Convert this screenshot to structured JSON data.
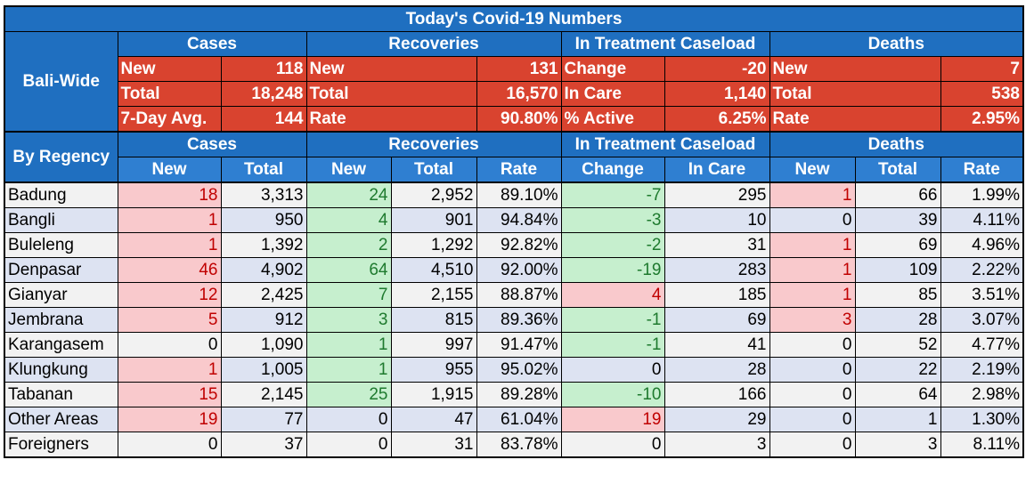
{
  "title": "Today's Covid-19 Numbers",
  "bali_wide": {
    "label": "Bali-Wide",
    "group_headers": [
      "Cases",
      "Recoveries",
      "In Treatment Caseload",
      "Deaths"
    ],
    "rows": [
      [
        "New",
        "118",
        "New",
        "131",
        "Change",
        "-20",
        "New",
        "7"
      ],
      [
        "Total",
        "18,248",
        "Total",
        "16,570",
        "In Care",
        "1,140",
        "Total",
        "538"
      ],
      [
        "7-Day Avg.",
        "144",
        "Rate",
        "90.80%",
        "% Active",
        "6.25%",
        "Rate",
        "2.95%"
      ]
    ]
  },
  "by_regency": {
    "label": "By Regency",
    "group_headers": [
      "Cases",
      "Recoveries",
      "In Treatment Caseload",
      "Deaths"
    ],
    "columns": [
      "New",
      "Total",
      "New",
      "Total",
      "Rate",
      "Change",
      "In Care",
      "New",
      "Total",
      "Rate"
    ],
    "rows": [
      {
        "name": "Badung",
        "v": [
          "18",
          "3,313",
          "24",
          "2,952",
          "89.10%",
          "-7",
          "295",
          "1",
          "66",
          "1.99%"
        ]
      },
      {
        "name": "Bangli",
        "v": [
          "1",
          "950",
          "4",
          "901",
          "94.84%",
          "-3",
          "10",
          "0",
          "39",
          "4.11%"
        ]
      },
      {
        "name": "Buleleng",
        "v": [
          "1",
          "1,392",
          "2",
          "1,292",
          "92.82%",
          "-2",
          "31",
          "1",
          "69",
          "4.96%"
        ]
      },
      {
        "name": "Denpasar",
        "v": [
          "46",
          "4,902",
          "64",
          "4,510",
          "92.00%",
          "-19",
          "283",
          "1",
          "109",
          "2.22%"
        ]
      },
      {
        "name": "Gianyar",
        "v": [
          "12",
          "2,425",
          "7",
          "2,155",
          "88.87%",
          "4",
          "185",
          "1",
          "85",
          "3.51%"
        ]
      },
      {
        "name": "Jembrana",
        "v": [
          "5",
          "912",
          "3",
          "815",
          "89.36%",
          "-1",
          "69",
          "3",
          "28",
          "3.07%"
        ]
      },
      {
        "name": "Karangasem",
        "v": [
          "0",
          "1,090",
          "1",
          "997",
          "91.47%",
          "-1",
          "41",
          "0",
          "52",
          "4.77%"
        ]
      },
      {
        "name": "Klungkung",
        "v": [
          "1",
          "1,005",
          "1",
          "955",
          "95.02%",
          "0",
          "28",
          "0",
          "22",
          "2.19%"
        ]
      },
      {
        "name": "Tabanan",
        "v": [
          "15",
          "2,145",
          "25",
          "1,915",
          "89.28%",
          "-10",
          "166",
          "0",
          "64",
          "2.98%"
        ]
      },
      {
        "name": "Other Areas",
        "v": [
          "19",
          "77",
          "0",
          "47",
          "61.04%",
          "19",
          "29",
          "0",
          "1",
          "1.30%"
        ]
      },
      {
        "name": "Foreigners",
        "v": [
          "0",
          "37",
          "0",
          "31",
          "83.78%",
          "0",
          "3",
          "0",
          "3",
          "8.11%"
        ]
      }
    ]
  },
  "colors": {
    "header_blue": "#1f6fc0",
    "summary_red": "#d9432f",
    "increase_pink": "#f9c9cc",
    "increase_text": "#c00000",
    "good_green": "#c6efce",
    "good_text": "#1e7a2e"
  }
}
